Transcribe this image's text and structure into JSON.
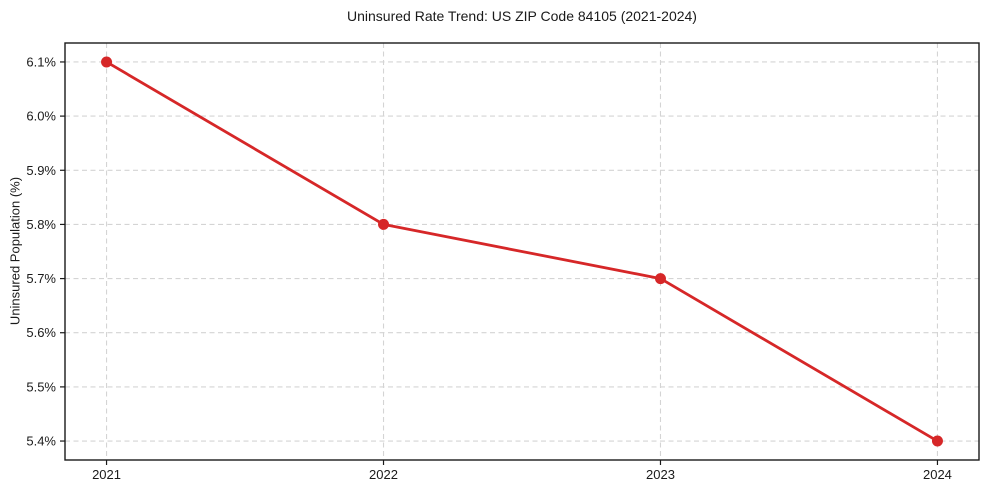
{
  "title": "Uninsured Rate Trend: US ZIP Code 84105 (2021-2024)",
  "colors": {
    "line": "#d62728",
    "grid": "#d4d4d4",
    "spine": "#1a1a1a",
    "text": "#1a1a1a",
    "background": "#ffffff"
  },
  "chart_data": {
    "type": "line",
    "title": "Uninsured Rate Trend: US ZIP Code 84105 (2021-2024)",
    "xlabel": "",
    "ylabel": "Uninsured Population (%)",
    "x": [
      2021,
      2022,
      2023,
      2024
    ],
    "values": [
      6.1,
      5.8,
      5.7,
      5.4
    ],
    "xtick_labels": [
      "2021",
      "2022",
      "2023",
      "2024"
    ],
    "yticks": [
      5.4,
      5.5,
      5.6,
      5.7,
      5.8,
      5.9,
      6.0,
      6.1
    ],
    "ytick_labels": [
      "5.4%",
      "5.5%",
      "5.6%",
      "5.7%",
      "5.8%",
      "5.9%",
      "6.0%",
      "6.1%"
    ],
    "xlim": [
      2020.85,
      2024.15
    ],
    "ylim": [
      5.365,
      6.135
    ],
    "grid": true,
    "grid_style": "dashed",
    "legend": false,
    "line_color": "#d62728",
    "marker": "circle",
    "marker_radius": 5.5,
    "line_width": 2.8
  }
}
